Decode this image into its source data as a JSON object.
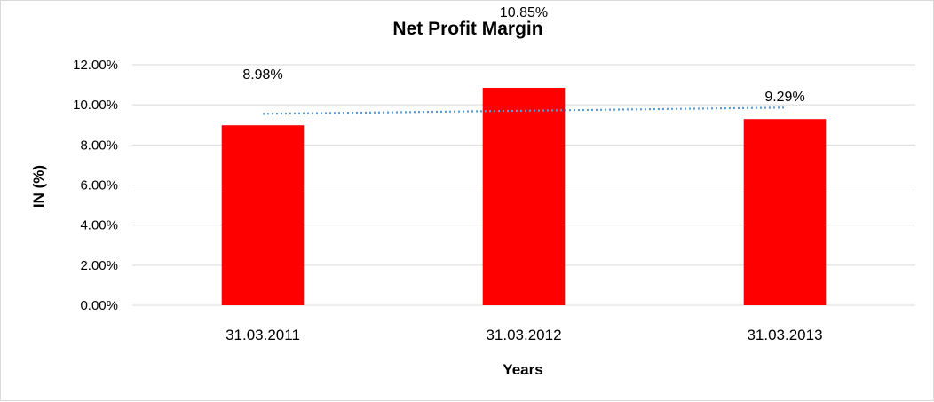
{
  "chart_data": {
    "type": "bar",
    "title": "Net Profit Margin",
    "xlabel": "Years",
    "ylabel": "IN (%)",
    "categories": [
      "31.03.2011",
      "31.03.2012",
      "31.03.2013"
    ],
    "values": [
      8.98,
      10.85,
      9.29
    ],
    "data_labels": [
      "8.98%",
      "10.85%",
      "9.29%"
    ],
    "ylim": [
      0,
      12
    ],
    "yticks": [
      0,
      2,
      4,
      6,
      8,
      10,
      12
    ],
    "ytick_labels": [
      "0.00%",
      "2.00%",
      "4.00%",
      "6.00%",
      "8.00%",
      "10.00%",
      "12.00%"
    ],
    "trendline": "linear",
    "grid": true,
    "legend": "none",
    "colors": {
      "bar": "#ff0000",
      "trendline": "#5b9bd5",
      "grid": "#d9d9d9"
    }
  }
}
